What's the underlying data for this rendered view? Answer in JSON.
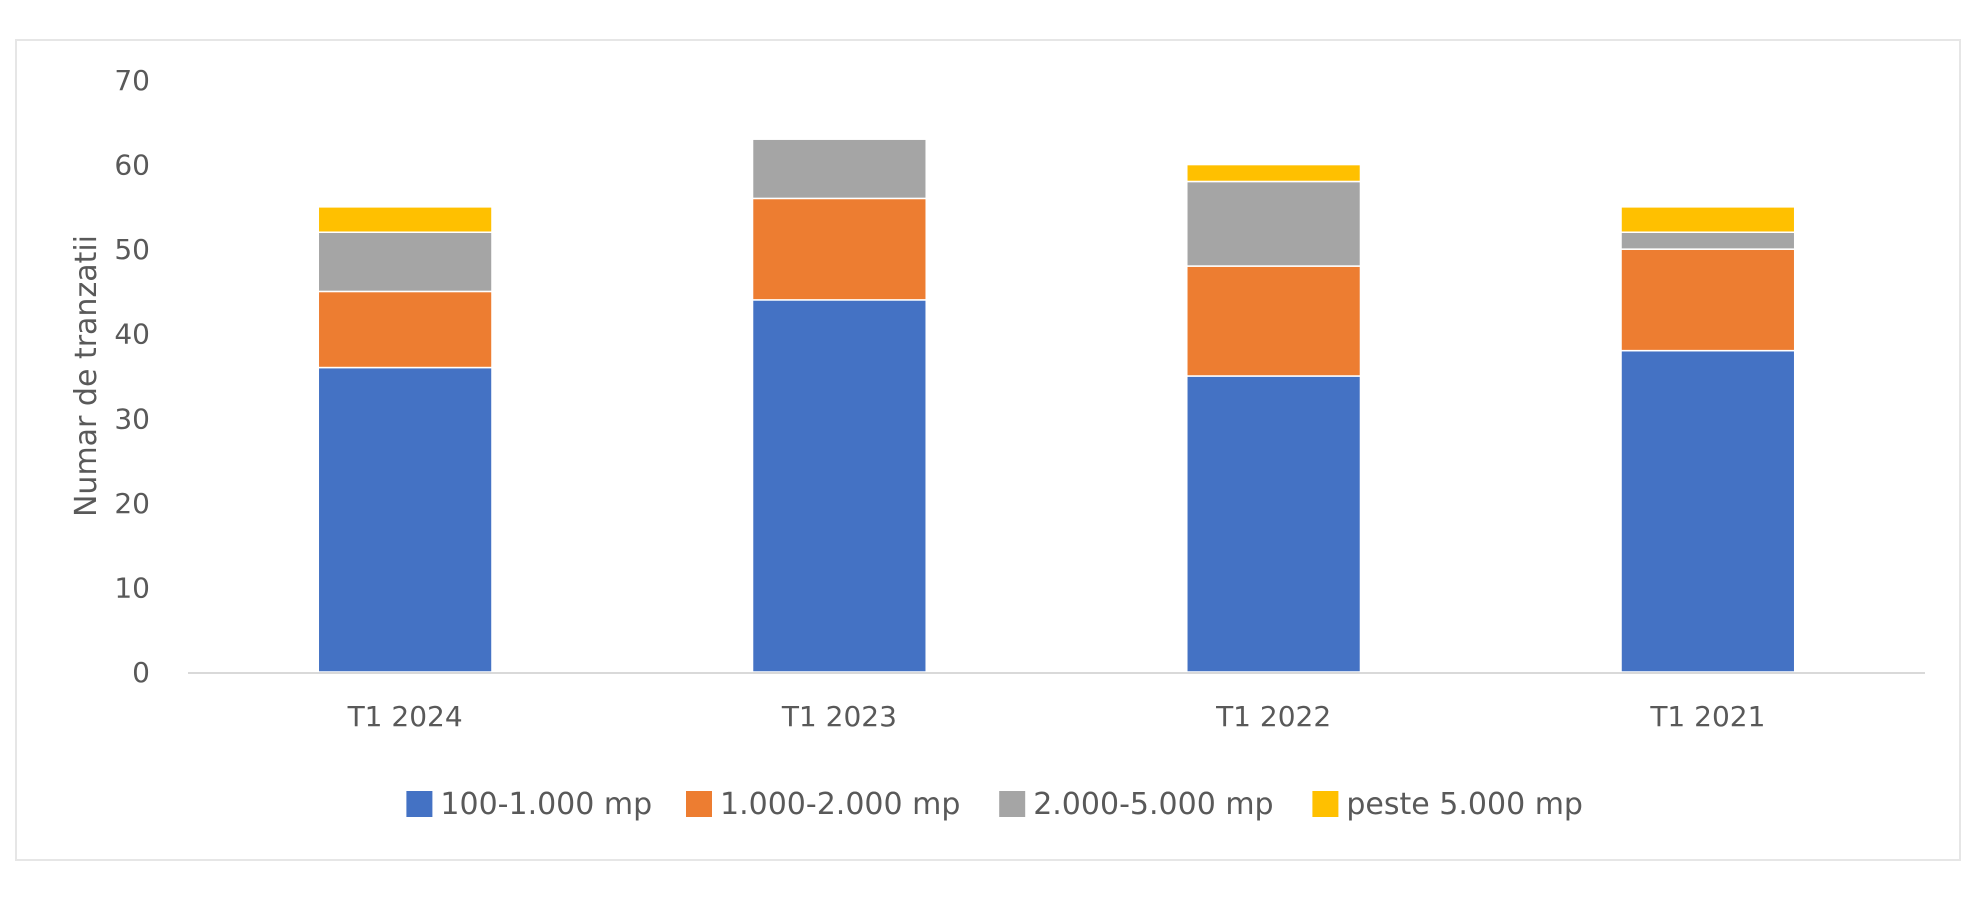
{
  "chart_data": {
    "type": "bar",
    "stacked": true,
    "title": "",
    "xlabel": "",
    "ylabel": "Numar de tranzatii",
    "ylim": [
      0,
      70
    ],
    "yticks": [
      0,
      10,
      20,
      30,
      40,
      50,
      60,
      70
    ],
    "grid": false,
    "legend_position": "bottom",
    "categories": [
      "T1 2024",
      "T1 2023",
      "T1 2022",
      "T1 2021"
    ],
    "series": [
      {
        "name": "100-1.000 mp",
        "color": "#4472C4",
        "values": [
          36,
          44,
          35,
          38
        ]
      },
      {
        "name": "1.000-2.000 mp",
        "color": "#ED7D31",
        "values": [
          9,
          12,
          13,
          12
        ]
      },
      {
        "name": "2.000-5.000 mp",
        "color": "#A5A5A5",
        "values": [
          7,
          7,
          10,
          2
        ]
      },
      {
        "name": "peste 5.000 mp",
        "color": "#FFC000",
        "values": [
          3,
          0,
          2,
          3
        ]
      }
    ]
  }
}
